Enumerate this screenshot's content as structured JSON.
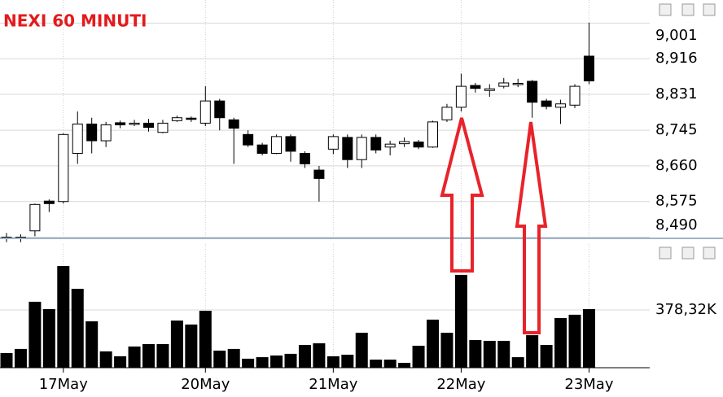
{
  "chart_data": [
    {
      "type": "candlestick",
      "title": "NEXI 60 MINUTI",
      "up_color": "#ffffff",
      "down_color": "#000000",
      "open": [
        8.49,
        8.488,
        8.505,
        8.576,
        8.575,
        8.69,
        8.76,
        8.72,
        8.763,
        8.76,
        8.762,
        8.74,
        8.768,
        8.774,
        8.762,
        8.815,
        8.77,
        8.735,
        8.71,
        8.69,
        8.73,
        8.69,
        8.65,
        8.7,
        8.728,
        8.675,
        8.728,
        8.705,
        8.713,
        8.717,
        8.705,
        8.77,
        8.8,
        8.852,
        8.84,
        8.85,
        8.855,
        8.862,
        8.815,
        8.8,
        8.805,
        8.922
      ],
      "high": [
        8.5,
        8.497,
        8.57,
        8.58,
        8.738,
        8.79,
        8.775,
        8.765,
        8.768,
        8.77,
        8.772,
        8.77,
        8.78,
        8.778,
        8.85,
        8.82,
        8.775,
        8.745,
        8.715,
        8.735,
        8.735,
        8.695,
        8.66,
        8.735,
        8.735,
        8.735,
        8.735,
        8.72,
        8.728,
        8.722,
        8.768,
        8.808,
        8.88,
        8.858,
        8.855,
        8.87,
        8.868,
        8.865,
        8.82,
        8.818,
        8.855,
        9.002
      ],
      "low": [
        8.478,
        8.478,
        8.492,
        8.55,
        8.57,
        8.665,
        8.69,
        8.705,
        8.75,
        8.755,
        8.742,
        8.738,
        8.765,
        8.765,
        8.755,
        8.745,
        8.665,
        8.705,
        8.685,
        8.688,
        8.67,
        8.655,
        8.575,
        8.688,
        8.655,
        8.655,
        8.69,
        8.685,
        8.705,
        8.7,
        8.703,
        8.765,
        8.79,
        8.835,
        8.825,
        8.845,
        8.848,
        8.775,
        8.795,
        8.76,
        8.798,
        8.855
      ],
      "close": [
        8.49,
        8.49,
        8.568,
        8.57,
        8.735,
        8.76,
        8.72,
        8.758,
        8.758,
        8.762,
        8.752,
        8.762,
        8.775,
        8.772,
        8.815,
        8.775,
        8.75,
        8.71,
        8.69,
        8.73,
        8.695,
        8.665,
        8.63,
        8.73,
        8.675,
        8.728,
        8.698,
        8.712,
        8.718,
        8.705,
        8.765,
        8.8,
        8.85,
        8.845,
        8.844,
        8.858,
        8.857,
        8.812,
        8.802,
        8.808,
        8.85,
        8.863
      ],
      "ylim": [
        8.489,
        9.056
      ],
      "yticks": [
        {
          "value": 9.001,
          "label": "9,001"
        },
        {
          "value": 8.916,
          "label": "8,916"
        },
        {
          "value": 8.831,
          "label": "8,831"
        },
        {
          "value": 8.745,
          "label": "8,745"
        },
        {
          "value": 8.66,
          "label": "8,660"
        },
        {
          "value": 8.575,
          "label": "8,575"
        },
        {
          "value": 8.49,
          "label": "8,490"
        }
      ],
      "grid": true
    },
    {
      "type": "bar",
      "color": "#000000",
      "categories": [
        null,
        null,
        null,
        null,
        "17May",
        null,
        null,
        null,
        null,
        null,
        null,
        null,
        null,
        null,
        "20May",
        null,
        null,
        null,
        null,
        null,
        null,
        null,
        null,
        "21May",
        null,
        null,
        null,
        null,
        null,
        null,
        null,
        null,
        "22May",
        null,
        null,
        null,
        null,
        null,
        null,
        null,
        null,
        "23May"
      ],
      "values": [
        96000,
        123000,
        432000,
        384000,
        666000,
        517000,
        304000,
        107000,
        75000,
        139000,
        155000,
        155000,
        309000,
        283000,
        373000,
        112000,
        123000,
        59000,
        69000,
        80000,
        91000,
        149000,
        160000,
        75000,
        85000,
        229000,
        53000,
        53000,
        32000,
        144000,
        315000,
        229000,
        608000,
        181000,
        176000,
        176000,
        69000,
        213000,
        149000,
        325000,
        347000,
        384000
      ],
      "ylim": [
        0,
        810000
      ],
      "yticks": [
        {
          "value": 378320,
          "label": "378,32K"
        }
      ],
      "grid": true
    }
  ]
}
